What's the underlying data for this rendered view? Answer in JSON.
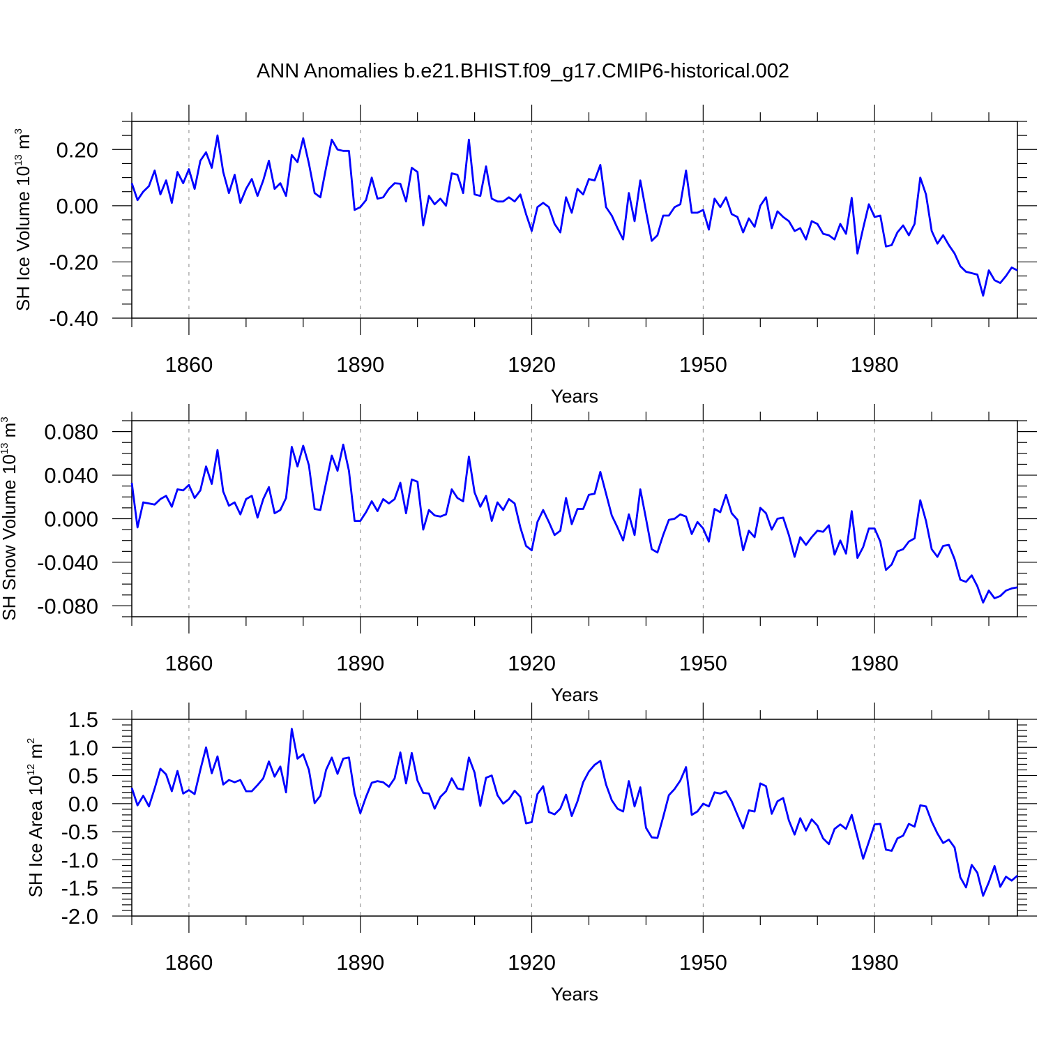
{
  "title": "ANN Anomalies b.e21.BHIST.f09_g17.CMIP6-historical.002",
  "colors": {
    "line": "#0000ff",
    "axis": "#000000",
    "grid": "#888888"
  },
  "chart_data": [
    {
      "type": "line",
      "ylabel": {
        "text": "SH Ice Volume 10",
        "exp": "13",
        "unit": " m",
        "unit_exp": "3"
      },
      "xlabel": "Years",
      "xlim": [
        1850,
        2005
      ],
      "ylim": [
        -0.4,
        0.3
      ],
      "xticks": [
        "1860",
        "1890",
        "1920",
        "1950",
        "1980"
      ],
      "xtick_values": [
        1860,
        1890,
        1920,
        1950,
        1980
      ],
      "yticks": [
        "0.20",
        "0.00",
        "-0.20",
        "-0.40"
      ],
      "ytick_values": [
        0.2,
        0.0,
        -0.2,
        -0.4
      ],
      "yminor_step": 0.05,
      "x_start": 1850,
      "values": [
        0.08,
        0.02,
        0.05,
        0.07,
        0.125,
        0.04,
        0.09,
        0.01,
        0.12,
        0.08,
        0.13,
        0.06,
        0.16,
        0.19,
        0.135,
        0.25,
        0.12,
        0.045,
        0.11,
        0.01,
        0.06,
        0.095,
        0.035,
        0.09,
        0.16,
        0.06,
        0.08,
        0.035,
        0.18,
        0.155,
        0.24,
        0.15,
        0.045,
        0.03,
        0.135,
        0.235,
        0.2,
        0.195,
        0.195,
        -0.015,
        -0.005,
        0.02,
        0.1,
        0.025,
        0.03,
        0.06,
        0.08,
        0.078,
        0.015,
        0.135,
        0.12,
        -0.07,
        0.035,
        0.005,
        0.025,
        0.0,
        0.115,
        0.11,
        0.045,
        0.235,
        0.04,
        0.035,
        0.14,
        0.025,
        0.015,
        0.015,
        0.03,
        0.015,
        0.04,
        -0.03,
        -0.09,
        -0.005,
        0.01,
        -0.005,
        -0.065,
        -0.095,
        0.03,
        -0.025,
        0.06,
        0.04,
        0.095,
        0.09,
        0.145,
        -0.005,
        -0.035,
        -0.08,
        -0.12,
        0.045,
        -0.055,
        0.09,
        -0.02,
        -0.125,
        -0.105,
        -0.035,
        -0.035,
        -0.005,
        0.005,
        0.125,
        -0.025,
        -0.025,
        -0.015,
        -0.085,
        0.025,
        -0.005,
        0.03,
        -0.03,
        -0.04,
        -0.095,
        -0.045,
        -0.075,
        0.0,
        0.03,
        -0.08,
        -0.02,
        -0.04,
        -0.055,
        -0.09,
        -0.08,
        -0.12,
        -0.055,
        -0.065,
        -0.1,
        -0.105,
        -0.12,
        -0.065,
        -0.1,
        0.028,
        -0.17,
        -0.08,
        0.005,
        -0.04,
        -0.035,
        -0.145,
        -0.14,
        -0.095,
        -0.07,
        -0.105,
        -0.065,
        0.1,
        0.04,
        -0.09,
        -0.135,
        -0.105,
        -0.14,
        -0.17,
        -0.215,
        -0.235,
        -0.24,
        -0.245,
        -0.32,
        -0.23,
        -0.265,
        -0.275,
        -0.25,
        -0.22,
        -0.23
      ]
    },
    {
      "type": "line",
      "ylabel": {
        "text": "SH Snow Volume 10",
        "exp": "13",
        "unit": " m",
        "unit_exp": "3"
      },
      "xlabel": "Years",
      "xlim": [
        1850,
        2005
      ],
      "ylim": [
        -0.09,
        0.09
      ],
      "xticks": [
        "1860",
        "1890",
        "1920",
        "1950",
        "1980"
      ],
      "xtick_values": [
        1860,
        1890,
        1920,
        1950,
        1980
      ],
      "yticks": [
        "0.080",
        "0.040",
        "0.000",
        "-0.040",
        "-0.080"
      ],
      "ytick_values": [
        0.08,
        0.04,
        0.0,
        -0.04,
        -0.08
      ],
      "yminor_step": 0.01,
      "x_start": 1850,
      "values": [
        0.033,
        -0.008,
        0.015,
        0.014,
        0.013,
        0.018,
        0.021,
        0.011,
        0.027,
        0.026,
        0.031,
        0.019,
        0.026,
        0.048,
        0.032,
        0.063,
        0.025,
        0.012,
        0.015,
        0.004,
        0.018,
        0.021,
        0.001,
        0.018,
        0.029,
        0.005,
        0.008,
        0.019,
        0.066,
        0.048,
        0.067,
        0.049,
        0.009,
        0.008,
        0.033,
        0.058,
        0.044,
        0.068,
        0.044,
        -0.002,
        -0.002,
        0.006,
        0.016,
        0.007,
        0.018,
        0.014,
        0.018,
        0.033,
        0.005,
        0.036,
        0.034,
        -0.01,
        0.008,
        0.003,
        0.002,
        0.004,
        0.027,
        0.019,
        0.016,
        0.057,
        0.024,
        0.011,
        0.021,
        -0.002,
        0.015,
        0.008,
        0.018,
        0.014,
        -0.008,
        -0.025,
        -0.029,
        -0.003,
        0.008,
        -0.003,
        -0.015,
        -0.011,
        0.019,
        -0.005,
        0.009,
        0.009,
        0.022,
        0.023,
        0.043,
        0.023,
        0.003,
        -0.008,
        -0.02,
        0.004,
        -0.015,
        0.027,
        0.0,
        -0.028,
        -0.031,
        -0.015,
        -0.001,
        0.0,
        0.004,
        0.002,
        -0.014,
        -0.003,
        -0.009,
        -0.021,
        0.009,
        0.006,
        0.022,
        0.005,
        -0.001,
        -0.029,
        -0.011,
        -0.017,
        0.01,
        0.005,
        -0.01,
        0.0,
        0.001,
        -0.015,
        -0.035,
        -0.017,
        -0.024,
        -0.017,
        -0.011,
        -0.012,
        -0.006,
        -0.033,
        -0.02,
        -0.032,
        0.007,
        -0.036,
        -0.026,
        -0.009,
        -0.009,
        -0.021,
        -0.047,
        -0.042,
        -0.03,
        -0.028,
        -0.021,
        -0.018,
        0.017,
        -0.002,
        -0.028,
        -0.035,
        -0.025,
        -0.024,
        -0.037,
        -0.056,
        -0.058,
        -0.052,
        -0.062,
        -0.077,
        -0.066,
        -0.073,
        -0.071,
        -0.066,
        -0.064,
        -0.063
      ]
    },
    {
      "type": "line",
      "ylabel": {
        "text": "SH Ice Area 10",
        "exp": "12",
        "unit": " m",
        "unit_exp": "2"
      },
      "xlabel": "Years",
      "xlim": [
        1850,
        2005
      ],
      "ylim": [
        -2.0,
        1.5
      ],
      "xticks": [
        "1860",
        "1890",
        "1920",
        "1950",
        "1980"
      ],
      "xtick_values": [
        1860,
        1890,
        1920,
        1950,
        1980
      ],
      "yticks": [
        "1.5",
        "1.0",
        "0.5",
        "0.0",
        "-0.5",
        "-1.0",
        "-1.5",
        "-2.0"
      ],
      "ytick_values": [
        1.5,
        1.0,
        0.5,
        0.0,
        -0.5,
        -1.0,
        -1.5,
        -2.0
      ],
      "yminor_step": 0.1,
      "x_start": 1850,
      "values": [
        0.28,
        -0.03,
        0.14,
        -0.05,
        0.27,
        0.62,
        0.52,
        0.22,
        0.58,
        0.18,
        0.24,
        0.17,
        0.6,
        1.0,
        0.54,
        0.84,
        0.34,
        0.42,
        0.38,
        0.42,
        0.22,
        0.22,
        0.33,
        0.45,
        0.75,
        0.48,
        0.66,
        0.2,
        1.33,
        0.8,
        0.88,
        0.6,
        0.01,
        0.14,
        0.6,
        0.82,
        0.53,
        0.8,
        0.82,
        0.18,
        -0.17,
        0.12,
        0.37,
        0.4,
        0.38,
        0.3,
        0.45,
        0.91,
        0.36,
        0.9,
        0.41,
        0.19,
        0.18,
        -0.09,
        0.12,
        0.22,
        0.45,
        0.27,
        0.25,
        0.82,
        0.55,
        -0.04,
        0.46,
        0.5,
        0.15,
        0.0,
        0.08,
        0.23,
        0.12,
        -0.35,
        -0.33,
        0.17,
        0.31,
        -0.15,
        -0.19,
        -0.09,
        0.16,
        -0.22,
        0.04,
        0.38,
        0.57,
        0.69,
        0.76,
        0.34,
        0.06,
        -0.09,
        -0.14,
        0.4,
        -0.05,
        0.29,
        -0.43,
        -0.6,
        -0.61,
        -0.24,
        0.15,
        0.26,
        0.41,
        0.65,
        -0.2,
        -0.14,
        0.0,
        -0.05,
        0.2,
        0.18,
        0.22,
        0.04,
        -0.2,
        -0.44,
        -0.12,
        -0.14,
        0.36,
        0.31,
        -0.18,
        0.04,
        0.1,
        -0.3,
        -0.55,
        -0.26,
        -0.48,
        -0.28,
        -0.39,
        -0.62,
        -0.72,
        -0.45,
        -0.37,
        -0.45,
        -0.2,
        -0.59,
        -0.98,
        -0.68,
        -0.37,
        -0.36,
        -0.82,
        -0.84,
        -0.62,
        -0.57,
        -0.36,
        -0.41,
        -0.03,
        -0.05,
        -0.32,
        -0.53,
        -0.7,
        -0.64,
        -0.78,
        -1.31,
        -1.49,
        -1.09,
        -1.23,
        -1.64,
        -1.4,
        -1.11,
        -1.48,
        -1.3,
        -1.37,
        -1.28
      ]
    }
  ]
}
